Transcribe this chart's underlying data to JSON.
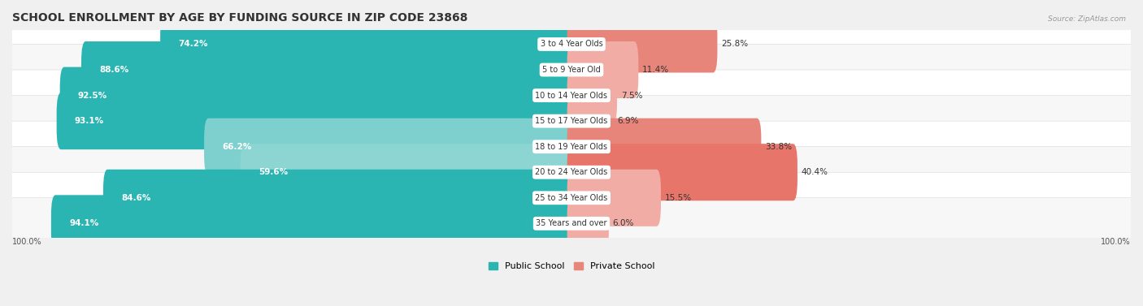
{
  "title": "SCHOOL ENROLLMENT BY AGE BY FUNDING SOURCE IN ZIP CODE 23868",
  "source": "Source: ZipAtlas.com",
  "categories": [
    "3 to 4 Year Olds",
    "5 to 9 Year Old",
    "10 to 14 Year Olds",
    "15 to 17 Year Olds",
    "18 to 19 Year Olds",
    "20 to 24 Year Olds",
    "25 to 34 Year Olds",
    "35 Years and over"
  ],
  "public_values": [
    74.2,
    88.6,
    92.5,
    93.1,
    66.2,
    59.6,
    84.6,
    94.1
  ],
  "private_values": [
    25.8,
    11.4,
    7.5,
    6.9,
    33.8,
    40.4,
    15.5,
    6.0
  ],
  "pub_colors": [
    "#2ab5b2",
    "#2ab5b2",
    "#2ab5b2",
    "#2ab5b2",
    "#7dd0ce",
    "#8dd5d3",
    "#2ab5b2",
    "#2ab5b2"
  ],
  "priv_colors": [
    "#e8857a",
    "#f0aca5",
    "#f0aca5",
    "#f0aca5",
    "#e8857a",
    "#e8756a",
    "#f0aca5",
    "#f0aca5"
  ],
  "bg_color": "#f0f0f0",
  "row_bg_odd": "#ffffff",
  "row_bg_even": "#f7f7f7",
  "title_fontsize": 10,
  "label_fontsize": 7.5,
  "legend_fontsize": 8,
  "bar_height": 0.62,
  "x_left_label": "100.0%",
  "x_right_label": "100.0%",
  "pub_label_color_white": [
    true,
    true,
    true,
    true,
    true,
    false,
    true,
    true
  ],
  "pub_label_ha_left": [
    true,
    true,
    true,
    true,
    true,
    false,
    true,
    true
  ]
}
